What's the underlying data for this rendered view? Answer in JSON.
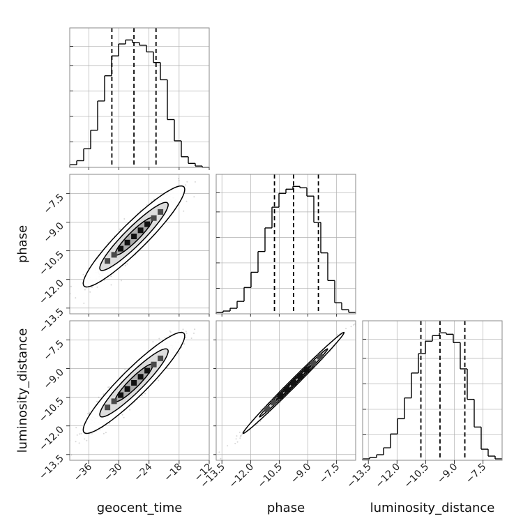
{
  "chart_data": {
    "type": "corner",
    "parameters": [
      "geocent_time",
      "phase",
      "luminosity_distance"
    ],
    "xlabels": [
      "geocent_time",
      "phase",
      "luminosity_distance"
    ],
    "ylabels": [
      "",
      "phase",
      "luminosity_distance"
    ],
    "ranges": {
      "geocent_time": [
        -39.8,
        -12.0
      ],
      "phase": [
        -13.8,
        -6.5
      ],
      "luminosity_distance": [
        -13.8,
        -6.5
      ]
    },
    "ticks": {
      "geocent_time": [
        -36,
        -30,
        -24,
        -18,
        -12
      ],
      "phase": [
        -13.5,
        -12.0,
        -10.5,
        -9.0,
        -7.5
      ],
      "luminosity_distance": [
        -13.5,
        -12.0,
        -10.5,
        -9.0,
        -7.5
      ]
    },
    "tick_labels": {
      "geocent_time": [
        "−36",
        "−30",
        "−24",
        "−18",
        "−12"
      ],
      "phase": [
        "−13.5",
        "−12.0",
        "−10.5",
        "−9.0",
        "−7.5"
      ],
      "luminosity_distance": [
        "−13.5",
        "−12.0",
        "−10.5",
        "−9.0",
        "−7.5"
      ]
    },
    "quantiles": {
      "geocent_time": [
        -31.4,
        -27.0,
        -22.6
      ],
      "phase": [
        -10.75,
        -9.75,
        -8.45
      ],
      "luminosity_distance": [
        -10.75,
        -9.75,
        -8.45
      ]
    },
    "histograms": {
      "geocent_time": {
        "edges": [
          -39.8,
          -38.41,
          -37.02,
          -35.63,
          -34.24,
          -32.85,
          -31.46,
          -30.07,
          -28.68,
          -27.29,
          -25.9,
          -24.51,
          -23.12,
          -21.73,
          -20.34,
          -18.95,
          -17.56,
          -16.17,
          -14.78,
          -13.39,
          -12.0
        ],
        "counts": [
          2,
          5,
          14,
          28,
          50,
          69,
          84,
          93,
          96,
          94,
          92,
          87,
          79,
          66,
          36,
          20,
          8,
          3,
          1,
          0
        ]
      },
      "phase": {
        "edges": [
          -13.8,
          -13.435,
          -13.07,
          -12.705,
          -12.34,
          -11.975,
          -11.61,
          -11.245,
          -10.88,
          -10.515,
          -10.15,
          -9.785,
          -9.42,
          -9.055,
          -8.69,
          -8.325,
          -7.96,
          -7.595,
          -7.23,
          -6.865,
          -6.5
        ],
        "counts": [
          1,
          2,
          4,
          9,
          19,
          30,
          45,
          62,
          77,
          87,
          90,
          92,
          91,
          85,
          66,
          44,
          24,
          8,
          3,
          1
        ]
      },
      "luminosity_distance": {
        "edges": [
          -13.8,
          -13.435,
          -13.07,
          -12.705,
          -12.34,
          -11.975,
          -11.61,
          -11.245,
          -10.88,
          -10.515,
          -10.15,
          -9.785,
          -9.42,
          -9.055,
          -8.69,
          -8.325,
          -7.96,
          -7.595,
          -7.23,
          -6.865,
          -6.5
        ],
        "counts": [
          1,
          2,
          4,
          9,
          19,
          30,
          45,
          63,
          77,
          86,
          90,
          92,
          91,
          85,
          66,
          44,
          24,
          8,
          3,
          1
        ]
      }
    },
    "correlations": {
      "phase_vs_geocent_time": 0.93,
      "luminosity_distance_vs_geocent_time": 0.93,
      "luminosity_distance_vs_phase": 0.995
    },
    "grid": true
  },
  "colors": {
    "line": "#000000",
    "grid": "#b0b0b0",
    "axes_edge": "#888888",
    "scatter": "#8a8a8a",
    "background": "#ffffff"
  }
}
